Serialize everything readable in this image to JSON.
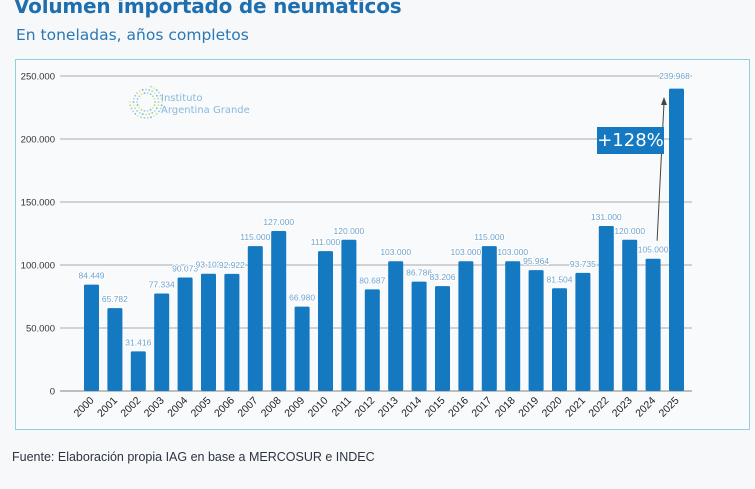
{
  "header": {
    "title": "Volumen importado de neumáticos",
    "subtitle": "En toneladas, años completos"
  },
  "logo": {
    "icon": "dotted-circle-logo-icon",
    "line1": "Instituto",
    "line2": "Argentina Grande"
  },
  "annotation": {
    "badge": "+128%",
    "arrow_from": "2024",
    "arrow_to": "2025"
  },
  "source": "Fuente: Elaboración propia IAG en base a MERCOSUR e INDEC",
  "colors": {
    "bar": "#1479c0",
    "title": "#1f6fae",
    "data_label": "#6fa3cf",
    "grid": "#aaaaaa",
    "frame_border": "#8fd0e0"
  },
  "chart_data": {
    "type": "bar",
    "title": "Volumen importado de neumáticos",
    "subtitle": "En toneladas, años completos",
    "xlabel": "",
    "ylabel": "",
    "ylim": [
      0,
      250000
    ],
    "yticks": [
      0,
      50000,
      100000,
      150000,
      200000,
      250000
    ],
    "ytick_labels": [
      "0",
      "50.000",
      "100.000",
      "150.000",
      "200.000",
      "250.000"
    ],
    "grid": "horizontal",
    "legend": "none",
    "categories": [
      "2000",
      "2001",
      "2002",
      "2003",
      "2004",
      "2005",
      "2006",
      "2007",
      "2008",
      "2009",
      "2010",
      "2011",
      "2012",
      "2013",
      "2014",
      "2015",
      "2016",
      "2017",
      "2018",
      "2019",
      "2020",
      "2021",
      "2022",
      "2023",
      "2024",
      "2025"
    ],
    "values": [
      84449,
      65782,
      31416,
      77334,
      90073,
      93102,
      92922,
      115000,
      127000,
      66980,
      111000,
      120000,
      80687,
      103000,
      86786,
      83206,
      103000,
      115000,
      103000,
      95964,
      81504,
      93735,
      131000,
      120000,
      105000,
      239968
    ],
    "value_labels": [
      "84.449",
      "65.782",
      "31.416",
      "77.334",
      "90.073",
      "93.102",
      "92.922",
      "115.000",
      "127.000",
      "66.980",
      "111.000",
      "120.000",
      "80.687",
      "103.000",
      "86.786",
      "83.206",
      "103.000",
      "115.000",
      "103.000",
      "95.964",
      "81.504",
      "93.735",
      "131.000",
      "120.000",
      "105.000",
      "239.968"
    ],
    "annotations": [
      {
        "text": "+128%",
        "type": "arrow",
        "from": "2024",
        "to": "2025"
      }
    ]
  }
}
